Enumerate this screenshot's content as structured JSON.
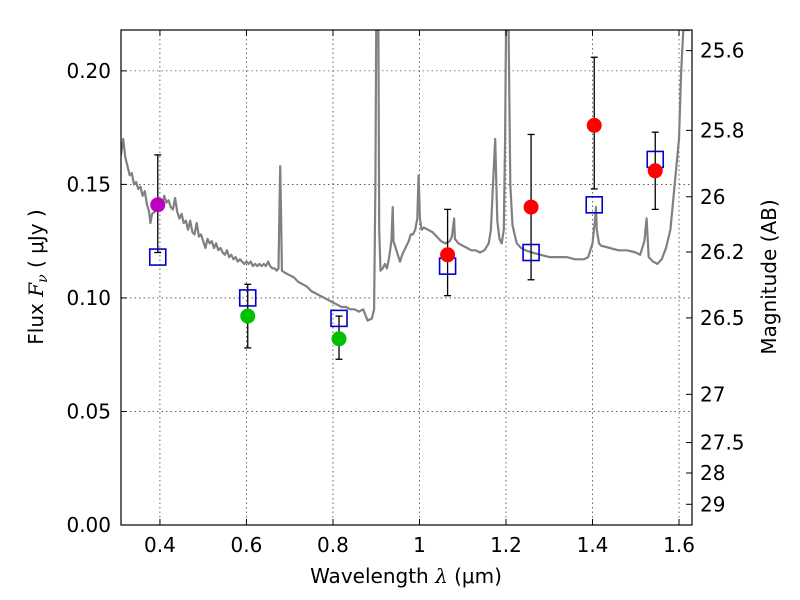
{
  "chart_data": {
    "type": "scatter",
    "xlabel": "Wavelength  λ (μm)",
    "ylabel": "Flux  F_ν  ( μJy )",
    "ylabel_parts": {
      "prefix": "Flux  ",
      "symbol": "F",
      "subscript": "ν",
      "suffix": "  ( μJy )"
    },
    "xlabel_parts": {
      "prefix": "Wavelength  ",
      "symbol": "λ",
      "suffix": " (μm)"
    },
    "y2label": "Magnitude (AB)",
    "xlim": [
      0.31,
      1.63
    ],
    "ylim": [
      0.0,
      0.218
    ],
    "grid": true,
    "x_ticks": [
      {
        "value": 0.4,
        "label": "0.4"
      },
      {
        "value": 0.6,
        "label": "0.6"
      },
      {
        "value": 0.8,
        "label": "0.8"
      },
      {
        "value": 1.0,
        "label": "1"
      },
      {
        "value": 1.2,
        "label": "1.2"
      },
      {
        "value": 1.4,
        "label": "1.4"
      },
      {
        "value": 1.6,
        "label": "1.6"
      }
    ],
    "y_ticks": [
      {
        "value": 0.0,
        "label": "0.00"
      },
      {
        "value": 0.05,
        "label": "0.05"
      },
      {
        "value": 0.1,
        "label": "0.10"
      },
      {
        "value": 0.15,
        "label": "0.15"
      },
      {
        "value": 0.2,
        "label": "0.20"
      }
    ],
    "y2_ticks": [
      {
        "value": 25.6,
        "label": "25.6"
      },
      {
        "value": 25.8,
        "label": "25.8"
      },
      {
        "value": 26.0,
        "label": "26"
      },
      {
        "value": 26.2,
        "label": "26.2"
      },
      {
        "value": 26.5,
        "label": "26.5"
      },
      {
        "value": 27.0,
        "label": "27"
      },
      {
        "value": 27.5,
        "label": "27.5"
      },
      {
        "value": 28.0,
        "label": "28"
      },
      {
        "value": 29.0,
        "label": "29"
      }
    ],
    "observed": [
      {
        "x": 0.395,
        "y": 0.141,
        "err_low": 0.12,
        "err_high": 0.163,
        "color": "#c000c0"
      },
      {
        "x": 0.603,
        "y": 0.092,
        "err_low": 0.078,
        "err_high": 0.106,
        "color": "#00c000"
      },
      {
        "x": 0.814,
        "y": 0.082,
        "err_low": 0.073,
        "err_high": 0.092,
        "color": "#00c000"
      },
      {
        "x": 1.065,
        "y": 0.119,
        "err_low": 0.101,
        "err_high": 0.139,
        "color": "#ff0000"
      },
      {
        "x": 1.258,
        "y": 0.14,
        "err_low": 0.108,
        "err_high": 0.172,
        "color": "#ff0000"
      },
      {
        "x": 1.404,
        "y": 0.176,
        "err_low": 0.148,
        "err_high": 0.206,
        "color": "#ff0000"
      },
      {
        "x": 1.545,
        "y": 0.156,
        "err_low": 0.139,
        "err_high": 0.173,
        "color": "#ff0000"
      }
    ],
    "model": [
      {
        "x": 0.395,
        "y": 0.118
      },
      {
        "x": 0.603,
        "y": 0.1
      },
      {
        "x": 0.814,
        "y": 0.091
      },
      {
        "x": 1.065,
        "y": 0.114
      },
      {
        "x": 1.258,
        "y": 0.12
      },
      {
        "x": 1.404,
        "y": 0.141
      },
      {
        "x": 1.545,
        "y": 0.161
      }
    ],
    "spectrum": [
      [
        0.31,
        0.163
      ],
      [
        0.315,
        0.17
      ],
      [
        0.32,
        0.162
      ],
      [
        0.325,
        0.158
      ],
      [
        0.33,
        0.154
      ],
      [
        0.335,
        0.155
      ],
      [
        0.34,
        0.15
      ],
      [
        0.345,
        0.151
      ],
      [
        0.35,
        0.148
      ],
      [
        0.355,
        0.149
      ],
      [
        0.36,
        0.145
      ],
      [
        0.365,
        0.147
      ],
      [
        0.37,
        0.141
      ],
      [
        0.375,
        0.138
      ],
      [
        0.378,
        0.133
      ],
      [
        0.382,
        0.137
      ],
      [
        0.388,
        0.138
      ],
      [
        0.394,
        0.143
      ],
      [
        0.4,
        0.139
      ],
      [
        0.405,
        0.141
      ],
      [
        0.41,
        0.145
      ],
      [
        0.415,
        0.142
      ],
      [
        0.42,
        0.143
      ],
      [
        0.425,
        0.14
      ],
      [
        0.43,
        0.139
      ],
      [
        0.435,
        0.144
      ],
      [
        0.44,
        0.138
      ],
      [
        0.445,
        0.135
      ],
      [
        0.45,
        0.137
      ],
      [
        0.455,
        0.133
      ],
      [
        0.46,
        0.134
      ],
      [
        0.465,
        0.13
      ],
      [
        0.47,
        0.134
      ],
      [
        0.475,
        0.129
      ],
      [
        0.48,
        0.128
      ],
      [
        0.485,
        0.133
      ],
      [
        0.49,
        0.127
      ],
      [
        0.495,
        0.128
      ],
      [
        0.5,
        0.125
      ],
      [
        0.505,
        0.122
      ],
      [
        0.51,
        0.126
      ],
      [
        0.515,
        0.124
      ],
      [
        0.52,
        0.125
      ],
      [
        0.525,
        0.122
      ],
      [
        0.53,
        0.124
      ],
      [
        0.535,
        0.121
      ],
      [
        0.54,
        0.122
      ],
      [
        0.545,
        0.12
      ],
      [
        0.55,
        0.119
      ],
      [
        0.555,
        0.121
      ],
      [
        0.56,
        0.118
      ],
      [
        0.565,
        0.119
      ],
      [
        0.57,
        0.117
      ],
      [
        0.575,
        0.118
      ],
      [
        0.58,
        0.116
      ],
      [
        0.585,
        0.117
      ],
      [
        0.59,
        0.116
      ],
      [
        0.595,
        0.115
      ],
      [
        0.6,
        0.116
      ],
      [
        0.605,
        0.115
      ],
      [
        0.61,
        0.116
      ],
      [
        0.615,
        0.114
      ],
      [
        0.62,
        0.115
      ],
      [
        0.625,
        0.114
      ],
      [
        0.63,
        0.115
      ],
      [
        0.635,
        0.114
      ],
      [
        0.64,
        0.115
      ],
      [
        0.645,
        0.114
      ],
      [
        0.65,
        0.116
      ],
      [
        0.655,
        0.114
      ],
      [
        0.66,
        0.113
      ],
      [
        0.665,
        0.113
      ],
      [
        0.67,
        0.112
      ],
      [
        0.674,
        0.113
      ],
      [
        0.676,
        0.135
      ],
      [
        0.678,
        0.158
      ],
      [
        0.68,
        0.136
      ],
      [
        0.682,
        0.112
      ],
      [
        0.69,
        0.111
      ],
      [
        0.7,
        0.11
      ],
      [
        0.71,
        0.109
      ],
      [
        0.72,
        0.107
      ],
      [
        0.73,
        0.106
      ],
      [
        0.74,
        0.105
      ],
      [
        0.75,
        0.103
      ],
      [
        0.76,
        0.102
      ],
      [
        0.77,
        0.101
      ],
      [
        0.78,
        0.1
      ],
      [
        0.79,
        0.099
      ],
      [
        0.8,
        0.098
      ],
      [
        0.81,
        0.097
      ],
      [
        0.82,
        0.096
      ],
      [
        0.83,
        0.096
      ],
      [
        0.84,
        0.095
      ],
      [
        0.85,
        0.095
      ],
      [
        0.86,
        0.094
      ],
      [
        0.87,
        0.095
      ],
      [
        0.88,
        0.09
      ],
      [
        0.89,
        0.091
      ],
      [
        0.895,
        0.095
      ],
      [
        0.898,
        0.15
      ],
      [
        0.9,
        0.218
      ],
      [
        0.905,
        0.218
      ],
      [
        0.907,
        0.13
      ],
      [
        0.91,
        0.112
      ],
      [
        0.915,
        0.113
      ],
      [
        0.92,
        0.115
      ],
      [
        0.925,
        0.113
      ],
      [
        0.93,
        0.118
      ],
      [
        0.935,
        0.125
      ],
      [
        0.938,
        0.14
      ],
      [
        0.94,
        0.125
      ],
      [
        0.945,
        0.122
      ],
      [
        0.95,
        0.119
      ],
      [
        0.955,
        0.116
      ],
      [
        0.96,
        0.119
      ],
      [
        0.965,
        0.121
      ],
      [
        0.97,
        0.123
      ],
      [
        0.975,
        0.125
      ],
      [
        0.98,
        0.128
      ],
      [
        0.985,
        0.128
      ],
      [
        0.99,
        0.13
      ],
      [
        0.995,
        0.135
      ],
      [
        0.998,
        0.154
      ],
      [
        1.001,
        0.135
      ],
      [
        1.005,
        0.13
      ],
      [
        1.01,
        0.131
      ],
      [
        1.02,
        0.13
      ],
      [
        1.03,
        0.129
      ],
      [
        1.04,
        0.127
      ],
      [
        1.05,
        0.125
      ],
      [
        1.06,
        0.124
      ],
      [
        1.07,
        0.125
      ],
      [
        1.075,
        0.127
      ],
      [
        1.08,
        0.135
      ],
      [
        1.082,
        0.126
      ],
      [
        1.09,
        0.124
      ],
      [
        1.1,
        0.123
      ],
      [
        1.11,
        0.122
      ],
      [
        1.12,
        0.121
      ],
      [
        1.13,
        0.121
      ],
      [
        1.14,
        0.12
      ],
      [
        1.15,
        0.121
      ],
      [
        1.16,
        0.124
      ],
      [
        1.165,
        0.13
      ],
      [
        1.17,
        0.15
      ],
      [
        1.175,
        0.17
      ],
      [
        1.18,
        0.134
      ],
      [
        1.185,
        0.126
      ],
      [
        1.19,
        0.124
      ],
      [
        1.195,
        0.13
      ],
      [
        1.198,
        0.17
      ],
      [
        1.2,
        0.218
      ],
      [
        1.206,
        0.218
      ],
      [
        1.21,
        0.15
      ],
      [
        1.215,
        0.132
      ],
      [
        1.22,
        0.128
      ],
      [
        1.225,
        0.124
      ],
      [
        1.235,
        0.122
      ],
      [
        1.245,
        0.121
      ],
      [
        1.26,
        0.12
      ],
      [
        1.28,
        0.119
      ],
      [
        1.3,
        0.118
      ],
      [
        1.32,
        0.118
      ],
      [
        1.34,
        0.118
      ],
      [
        1.36,
        0.117
      ],
      [
        1.38,
        0.117
      ],
      [
        1.39,
        0.118
      ],
      [
        1.395,
        0.121
      ],
      [
        1.4,
        0.124
      ],
      [
        1.405,
        0.133
      ],
      [
        1.408,
        0.14
      ],
      [
        1.41,
        0.13
      ],
      [
        1.415,
        0.124
      ],
      [
        1.42,
        0.123
      ],
      [
        1.44,
        0.122
      ],
      [
        1.46,
        0.121
      ],
      [
        1.48,
        0.121
      ],
      [
        1.5,
        0.12
      ],
      [
        1.51,
        0.119
      ],
      [
        1.52,
        0.125
      ],
      [
        1.525,
        0.135
      ],
      [
        1.53,
        0.118
      ],
      [
        1.54,
        0.116
      ],
      [
        1.55,
        0.115
      ],
      [
        1.56,
        0.117
      ],
      [
        1.57,
        0.122
      ],
      [
        1.58,
        0.13
      ],
      [
        1.59,
        0.15
      ],
      [
        1.6,
        0.17
      ],
      [
        1.605,
        0.2
      ],
      [
        1.61,
        0.218
      ],
      [
        1.615,
        0.218
      ],
      [
        1.62,
        0.218
      ],
      [
        1.625,
        0.218
      ]
    ]
  }
}
